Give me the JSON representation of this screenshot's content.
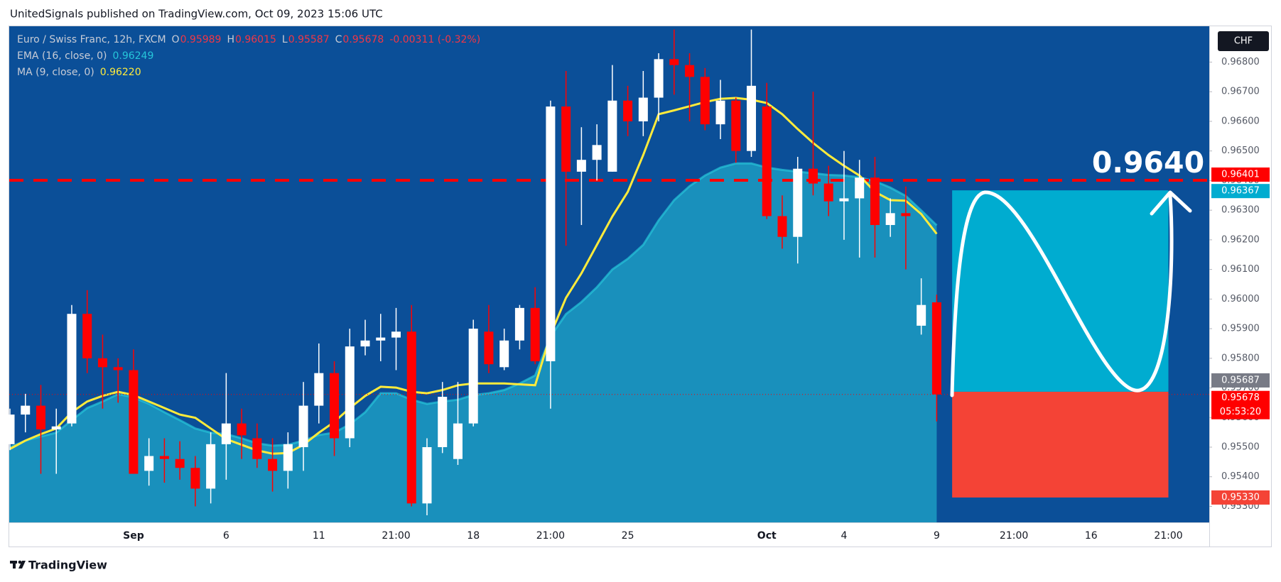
{
  "header": {
    "publisher": "UnitedSignals published on TradingView.com, Oct 09, 2023 15:06 UTC"
  },
  "footer": {
    "brand": "TradingView"
  },
  "chart_data": {
    "type": "candlestick",
    "title": "Euro / Swiss Franc, 12h, FXCM",
    "ohlc_labels": [
      "O",
      "H",
      "L",
      "C"
    ],
    "change_label": "-0.00311 (-0.32%)",
    "currency": "CHF",
    "up_color": "#ffffff",
    "down_color": "#ff0000",
    "background": "#0b4f98",
    "categories": [
      null,
      null,
      null,
      null,
      null,
      null,
      null,
      null,
      "Sep",
      null,
      null,
      null,
      null,
      null,
      "6",
      null,
      null,
      null,
      null,
      null,
      "11",
      null,
      null,
      null,
      null,
      "21:00",
      null,
      null,
      null,
      null,
      "18",
      null,
      null,
      null,
      null,
      "21:00",
      null,
      null,
      null,
      null,
      "25",
      null,
      null,
      null,
      null,
      null,
      null,
      null,
      null,
      "Oct",
      null,
      null,
      null,
      null,
      "4",
      null,
      null,
      null,
      null,
      null,
      "9",
      null,
      null,
      null,
      null,
      "21:00",
      null,
      null,
      null,
      null,
      "16",
      null,
      null,
      null,
      null,
      "21:00",
      null,
      null
    ],
    "open": [
      0.9551,
      0.9561,
      0.9564,
      0.9556,
      0.9558,
      0.9595,
      0.958,
      0.9577,
      0.9576,
      0.9542,
      0.9547,
      0.9546,
      0.9543,
      0.9536,
      0.9551,
      0.9558,
      0.9553,
      0.9546,
      0.9542,
      0.955,
      0.9564,
      0.9575,
      0.9553,
      0.9584,
      0.9586,
      0.9587,
      0.9589,
      0.9531,
      0.955,
      0.9546,
      0.9558,
      0.9589,
      0.9577,
      0.9586,
      0.9597,
      0.9579,
      0.9665,
      0.9643,
      0.9647,
      0.9643,
      0.9667,
      0.966,
      0.9668,
      0.9681,
      0.9679,
      0.9675,
      0.9659,
      0.9667,
      0.965,
      0.9665,
      0.9628,
      0.9621,
      0.9644,
      0.9639,
      0.9633,
      0.9634,
      0.9641,
      0.9625,
      0.9629,
      0.9591,
      0.95989,
      null,
      null,
      null,
      null,
      null,
      null,
      null,
      null,
      null,
      null,
      null,
      null,
      null,
      null,
      null,
      null,
      null
    ],
    "high": [
      0.9563,
      0.9568,
      0.9571,
      0.9563,
      0.9598,
      0.9603,
      0.9588,
      0.958,
      0.9583,
      0.9553,
      0.9553,
      0.9552,
      0.9547,
      0.9555,
      0.9575,
      0.9563,
      0.9558,
      0.9553,
      0.9555,
      0.9572,
      0.9585,
      0.9579,
      0.959,
      0.9593,
      0.9595,
      0.9597,
      0.9598,
      0.9553,
      0.9572,
      0.9572,
      0.9593,
      0.9598,
      0.959,
      0.9598,
      0.9604,
      0.9667,
      0.9677,
      0.9658,
      0.9659,
      0.9679,
      0.9672,
      0.9677,
      0.9683,
      0.9691,
      0.9683,
      0.9678,
      0.9674,
      0.9668,
      0.9691,
      0.9673,
      0.9635,
      0.9648,
      0.967,
      0.9645,
      0.965,
      0.9647,
      0.9648,
      0.9634,
      0.9638,
      0.9607,
      0.96015,
      null,
      null,
      null,
      null,
      null,
      null,
      null,
      null,
      null,
      null,
      null,
      null,
      null,
      null,
      null,
      null,
      null
    ],
    "low": [
      0.9549,
      0.9555,
      0.9541,
      0.9541,
      0.9557,
      0.9575,
      0.9563,
      0.9565,
      0.9541,
      0.9537,
      0.9538,
      0.9539,
      0.953,
      0.9531,
      0.9539,
      0.9546,
      0.9543,
      0.9535,
      0.9536,
      0.9542,
      0.9558,
      0.9547,
      0.955,
      0.9581,
      0.9579,
      0.9576,
      0.953,
      0.9527,
      0.9548,
      0.9544,
      0.9557,
      0.9575,
      0.9576,
      0.9583,
      0.9578,
      0.9563,
      0.9618,
      0.9625,
      0.964,
      0.9643,
      0.9655,
      0.9655,
      0.966,
      0.9669,
      0.966,
      0.9657,
      0.9654,
      0.9646,
      0.9648,
      0.9627,
      0.9617,
      0.9612,
      0.9635,
      0.9628,
      0.962,
      0.9614,
      0.9614,
      0.9621,
      0.961,
      0.9588,
      0.95587,
      null,
      null,
      null,
      null,
      null,
      null,
      null,
      null,
      null,
      null,
      null,
      null,
      null,
      null,
      null,
      null,
      null
    ],
    "close": [
      0.9561,
      0.9564,
      0.9556,
      0.9557,
      0.9595,
      0.958,
      0.9577,
      0.9576,
      0.9541,
      0.9547,
      0.9546,
      0.9543,
      0.9536,
      0.9551,
      0.9558,
      0.9554,
      0.9546,
      0.9542,
      0.9551,
      0.9564,
      0.9575,
      0.9553,
      0.9584,
      0.9586,
      0.9587,
      0.9589,
      0.9531,
      0.955,
      0.9567,
      0.9558,
      0.959,
      0.9578,
      0.9586,
      0.9597,
      0.9579,
      0.9665,
      0.9643,
      0.9647,
      0.9652,
      0.9667,
      0.966,
      0.9668,
      0.9681,
      0.9679,
      0.9675,
      0.9659,
      0.9667,
      0.965,
      0.9672,
      0.9628,
      0.9621,
      0.9644,
      0.9639,
      0.9633,
      0.9634,
      0.9641,
      0.9625,
      0.9629,
      0.9628,
      0.9598,
      0.95678,
      null,
      null,
      null,
      null,
      null,
      null,
      null,
      null,
      null,
      null,
      null,
      null,
      null,
      null,
      null,
      null,
      null
    ],
    "indicators": [
      {
        "name": "EMA (16, close, 0)",
        "color": "#26c6da",
        "style": "area",
        "values": [
          0.955,
          0.95522,
          0.95536,
          0.95549,
          0.95591,
          0.95632,
          0.95654,
          0.95679,
          0.95668,
          0.95646,
          0.95618,
          0.95591,
          0.95563,
          0.95549,
          0.95544,
          0.9553,
          0.95513,
          0.95505,
          0.95508,
          0.95522,
          0.95541,
          0.95549,
          0.95577,
          0.95618,
          0.95682,
          0.95682,
          0.9566,
          0.95646,
          0.95654,
          0.9566,
          0.95676,
          0.95682,
          0.95693,
          0.95715,
          0.95742,
          0.95874,
          0.95949,
          0.9599,
          0.9604,
          0.961,
          0.96136,
          0.96183,
          0.96266,
          0.96334,
          0.96381,
          0.96417,
          0.96444,
          0.96458,
          0.96458,
          0.96444,
          0.96436,
          0.9643,
          0.96425,
          0.96419,
          0.96417,
          0.96411,
          0.96398,
          0.96376,
          0.96348,
          0.96299,
          0.96249,
          null,
          null,
          null,
          null,
          null,
          null,
          null,
          null,
          null,
          null,
          null,
          null,
          null,
          null,
          null,
          null,
          null
        ]
      },
      {
        "name": "MA (9, close, 0)",
        "color": "#ffeb3b",
        "style": "line",
        "values": [
          0.95494,
          0.95522,
          0.95544,
          0.95563,
          0.95618,
          0.95654,
          0.95673,
          0.95687,
          0.95676,
          0.95654,
          0.95632,
          0.9561,
          0.95599,
          0.95563,
          0.95527,
          0.95508,
          0.95489,
          0.95478,
          0.9548,
          0.95508,
          0.95549,
          0.95585,
          0.95632,
          0.95673,
          0.95704,
          0.95701,
          0.95687,
          0.95682,
          0.95693,
          0.95709,
          0.95715,
          0.95715,
          0.95715,
          0.95712,
          0.95709,
          0.9588,
          0.96004,
          0.96087,
          0.96183,
          0.96279,
          0.96362,
          0.96486,
          0.96624,
          0.96637,
          0.96651,
          0.96665,
          0.96676,
          0.96679,
          0.96673,
          0.96662,
          0.96624,
          0.96574,
          0.96527,
          0.96486,
          0.9645,
          0.96417,
          0.96362,
          0.96334,
          0.96332,
          0.96287,
          0.9622,
          null,
          null,
          null,
          null,
          null,
          null,
          null,
          null,
          null,
          null,
          null,
          null,
          null,
          null,
          null,
          null,
          null
        ],
        "value_labels": [
          null,
          null,
          null,
          null,
          null,
          null,
          null,
          null,
          null,
          null,
          null,
          null,
          null,
          null,
          null,
          null,
          null,
          null,
          null,
          null,
          null,
          null,
          null,
          null,
          null,
          null,
          null,
          null,
          null,
          null,
          null,
          null,
          null,
          null,
          null,
          null,
          null,
          null,
          null,
          null,
          null,
          null,
          null,
          null,
          null,
          null,
          null,
          null,
          null,
          null,
          null,
          null,
          null,
          null,
          null,
          null,
          null,
          null,
          null,
          null,
          "0.96220",
          null,
          null,
          null,
          null,
          null,
          null,
          null,
          null,
          null,
          null,
          null,
          null,
          null,
          null,
          null,
          null,
          null
        ]
      }
    ],
    "levels": [
      {
        "value": 0.96401,
        "color": "#ff0000"
      }
    ],
    "annotation": "0.9640",
    "position": {
      "entry": 0.95687,
      "entry_color": "#787b86",
      "target": 0.96367,
      "target_color": "#00acd0",
      "stop": {
        "value": 0.9533,
        "label": "0.95330"
      },
      "stop_color": "#f44336"
    },
    "countdown": "05:53:20",
    "ylim": [
      0.95246,
      0.96921
    ],
    "yticks": [
      {
        "value": 0.953,
        "label": "0.95300"
      },
      {
        "value": 0.954,
        "label": "0.95400"
      },
      {
        "value": 0.955,
        "label": "0.95500"
      },
      {
        "value": 0.956,
        "label": "0.95600"
      },
      {
        "value": 0.957,
        "label": "0.95700"
      },
      {
        "value": 0.958,
        "label": "0.95800"
      },
      {
        "value": 0.959,
        "label": "0.95900"
      },
      {
        "value": 0.96,
        "label": "0.96000"
      },
      {
        "value": 0.961,
        "label": "0.96100"
      },
      {
        "value": 0.962,
        "label": "0.96200"
      },
      {
        "value": 0.963,
        "label": "0.96300"
      },
      {
        "value": 0.964,
        "label": "0.96400"
      },
      {
        "value": 0.965,
        "label": "0.96500"
      },
      {
        "value": 0.966,
        "label": "0.96600"
      },
      {
        "value": 0.967,
        "label": "0.96700"
      },
      {
        "value": 0.968,
        "label": "0.96800"
      }
    ],
    "grid": false
  }
}
